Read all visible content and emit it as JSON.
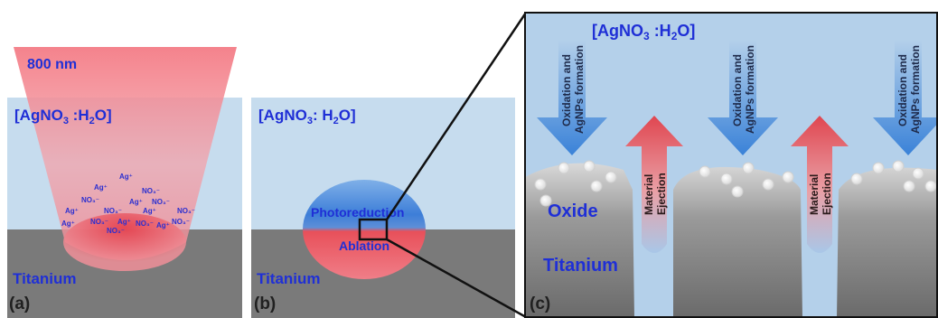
{
  "panel_a": {
    "label": "(a)",
    "wavelength": "800 nm",
    "solution": "[AgNO",
    "solution_sub3": "3",
    "solution_rest": " :H",
    "solution_sub2": "2",
    "solution_end": "O]",
    "substrate": "Titanium",
    "ions": [
      "Ag⁺",
      "Ag⁺",
      "NO₃⁻",
      "NO₃⁻",
      "Ag⁺",
      "NO₃⁻",
      "Ag⁺",
      "NO₃⁻",
      "Ag⁺",
      "NO₃⁻",
      "Ag⁺",
      "NO₃⁻",
      "Ag⁺",
      "NO₃⁻",
      "Ag⁺",
      "NO₃⁻",
      "NO₃⁻"
    ]
  },
  "panel_b": {
    "label": "(b)",
    "solution": "[AgNO",
    "solution_sub3": "3",
    "solution_rest": ": H",
    "solution_sub2": "2",
    "solution_end": "O]",
    "substrate": "Titanium",
    "photoreduction": "Photoreduction",
    "ablation": "Ablation"
  },
  "panel_c": {
    "label": "(c)",
    "solution": "[AgNO",
    "solution_sub3": "3",
    "solution_rest": " :H",
    "solution_sub2": "2",
    "solution_end": "O]",
    "oxide": "Oxide",
    "substrate": "Titanium",
    "down_arrow_line1": "Oxidation and",
    "down_arrow_line2": "AgNPs  formation",
    "up_arrow_line1": "Material",
    "up_arrow_line2": "Ejection"
  },
  "colors": {
    "solution": "#c6dcee",
    "solution_c": "#b4d0ea",
    "titanium": "#7a7a7a",
    "laser": "#f08a92",
    "label_blue": "#1f2fd6",
    "ablation_red": "#e8404a"
  }
}
